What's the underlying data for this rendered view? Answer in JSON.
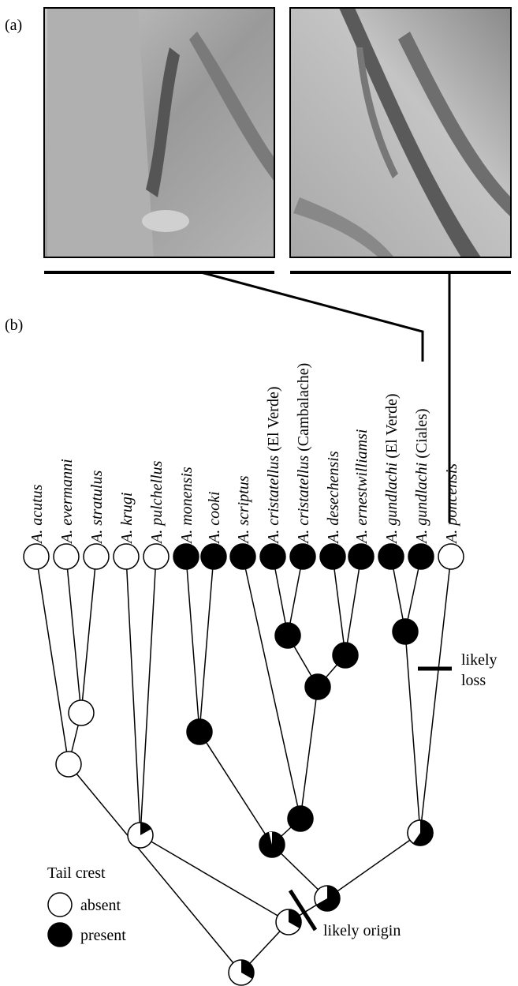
{
  "panel_a": {
    "label": "(a)"
  },
  "panel_b": {
    "label": "(b)",
    "tips": [
      {
        "name": "A. acutus"
      },
      {
        "name": "A. evermanni"
      },
      {
        "name": "A. stratulus"
      },
      {
        "name": "A. krugi"
      },
      {
        "name": "A. pulchellus"
      },
      {
        "name": "A. monensis"
      },
      {
        "name": "A. cooki"
      },
      {
        "name": "A. scriptus"
      },
      {
        "name": "A. cristatellus",
        "locale": "(El Verde)"
      },
      {
        "name": "A. cristatellus",
        "locale": "(Cambalache)"
      },
      {
        "name": "A. desechensis"
      },
      {
        "name": "A. ernestwilliamsi"
      },
      {
        "name": "A. gundlachi",
        "locale": "(El Verde)"
      },
      {
        "name": "A. gundlachi",
        "locale": "(Ciales)"
      },
      {
        "name": "A. poncensis"
      }
    ],
    "loss_label": [
      "likely",
      "loss"
    ],
    "origin_label": "likely origin",
    "legend": {
      "title": "Tail crest",
      "absent": "absent",
      "present": "present"
    }
  }
}
